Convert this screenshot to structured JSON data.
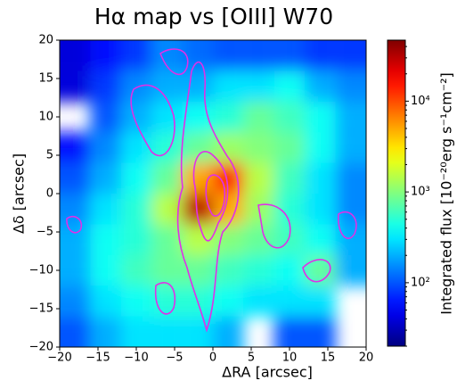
{
  "chart_data": {
    "type": "heatmap",
    "title": "Hα map vs [OIII] W70",
    "xlabel": "ΔRA [arcsec]",
    "ylabel": "Δδ [arcsec]",
    "colorbar_label": "Integrated flux [10⁻²⁰erg s⁻¹cm⁻²]",
    "colormap": "jet",
    "log_scale_color": true,
    "contour_color": "#e030e8",
    "xlim": [
      -20,
      20
    ],
    "ylim": [
      -20,
      20
    ],
    "xticks": [
      {
        "value": -20,
        "label": "−20"
      },
      {
        "value": -15,
        "label": "−15"
      },
      {
        "value": -10,
        "label": "−10"
      },
      {
        "value": -5,
        "label": "−5"
      },
      0,
      5,
      10,
      15,
      20
    ],
    "yticks": [
      {
        "value": -20,
        "label": "−20"
      },
      {
        "value": -15,
        "label": "−15"
      },
      {
        "value": -10,
        "label": "−10"
      },
      {
        "value": -5,
        "label": "−5"
      },
      0,
      5,
      10,
      15,
      20
    ],
    "x": [
      -18,
      -14,
      -10,
      -6,
      -2,
      2,
      6,
      10,
      14,
      18
    ],
    "y": [
      18,
      14,
      10,
      6,
      2,
      -2,
      -6,
      -10,
      -14,
      -18
    ],
    "z": [
      [
        40,
        60,
        80,
        150,
        120,
        100,
        100,
        100,
        80,
        80
      ],
      [
        40,
        80,
        150,
        200,
        200,
        300,
        300,
        400,
        200,
        150
      ],
      [
        null,
        100,
        200,
        300,
        400,
        500,
        800,
        600,
        400,
        200
      ],
      [
        60,
        150,
        300,
        500,
        800,
        1200,
        1000,
        800,
        400,
        200
      ],
      [
        100,
        200,
        400,
        800,
        5000,
        15000,
        1500,
        600,
        300,
        150
      ],
      [
        150,
        300,
        500,
        1500,
        30000,
        5000,
        1200,
        500,
        300,
        150
      ],
      [
        200,
        400,
        500,
        800,
        1500,
        1000,
        800,
        600,
        400,
        200
      ],
      [
        200,
        400,
        600,
        800,
        800,
        600,
        500,
        400,
        800,
        200
      ],
      [
        150,
        300,
        400,
        500,
        500,
        400,
        300,
        300,
        300,
        null
      ],
      [
        100,
        200,
        300,
        300,
        300,
        200,
        null,
        100,
        100,
        null
      ]
    ],
    "clim": [
      20,
      47000
    ],
    "cticks": [
      {
        "value": 100,
        "label": "10²"
      },
      {
        "value": 1000,
        "label": "10³"
      },
      {
        "value": 10000,
        "label": "10⁴"
      }
    ]
  }
}
